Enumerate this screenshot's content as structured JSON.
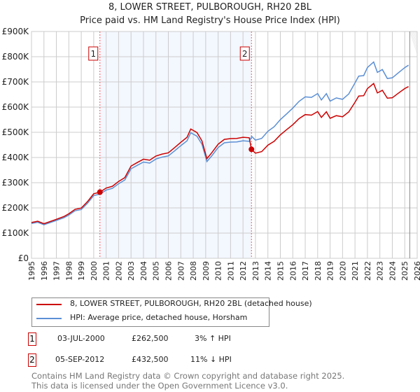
{
  "chart_data": {
    "type": "line",
    "title": "8, LOWER STREET, PULBOROUGH, RH20 2BL",
    "subtitle": "Price paid vs. HM Land Registry's House Price Index (HPI)",
    "xlim": [
      1995,
      2026
    ],
    "ylim": [
      0,
      900000
    ],
    "x_ticks": [
      "1995",
      "1996",
      "1997",
      "1998",
      "1999",
      "2000",
      "2001",
      "2002",
      "2003",
      "2004",
      "2005",
      "2006",
      "2007",
      "2008",
      "2009",
      "2010",
      "2011",
      "2012",
      "2013",
      "2014",
      "2015",
      "2016",
      "2017",
      "2018",
      "2019",
      "2020",
      "2021",
      "2022",
      "2023",
      "2024",
      "2025",
      "2026"
    ],
    "y_ticks": [
      "£0",
      "£100K",
      "£200K",
      "£300K",
      "£400K",
      "£500K",
      "£600K",
      "£700K",
      "£800K",
      "£900K"
    ],
    "series": [
      {
        "name": "HPI: Average price, detached house, Horsham",
        "color": "#5b8fd4",
        "x": [
          1995,
          1995.5,
          1996,
          1997,
          1997.6,
          1998,
          1998.5,
          1999,
          1999.5,
          2000,
          2000.5,
          2001,
          2001.5,
          2002,
          2002.5,
          2003,
          2003.5,
          2004,
          2004.5,
          2005,
          2005.5,
          2006,
          2006.5,
          2007,
          2007.5,
          2007.8,
          2008.3,
          2008.7,
          2009.1,
          2009.5,
          2010,
          2010.5,
          2011,
          2011.5,
          2012,
          2012.5,
          2012.7,
          2013,
          2013.5,
          2014,
          2014.5,
          2015,
          2015.5,
          2016,
          2016.5,
          2017,
          2017.5,
          2018,
          2018.3,
          2018.7,
          2019,
          2019.5,
          2020,
          2020.5,
          2021,
          2021.3,
          2021.7,
          2022,
          2022.5,
          2022.8,
          2023.2,
          2023.6,
          2024,
          2024.5,
          2025,
          2025.3
        ],
        "y": [
          138000,
          140000,
          137000,
          148000,
          160000,
          175000,
          185000,
          195000,
          220000,
          245000,
          258000,
          270000,
          275000,
          300000,
          308000,
          355000,
          372000,
          378000,
          380000,
          395000,
          398000,
          410000,
          425000,
          445000,
          470000,
          495000,
          485000,
          455000,
          380000,
          410000,
          440000,
          455000,
          465000,
          460000,
          465000,
          468000,
          480000,
          470000,
          478000,
          500000,
          525000,
          550000,
          570000,
          600000,
          620000,
          640000,
          642000,
          650000,
          630000,
          655000,
          620000,
          640000,
          630000,
          650000,
          700000,
          720000,
          725000,
          760000,
          775000,
          740000,
          750000,
          710000,
          720000,
          735000,
          755000,
          770000
        ]
      },
      {
        "name": "8, LOWER STREET, PULBOROUGH, RH20 2BL (detached house)",
        "color": "#cc0000"
      }
    ],
    "sales": [
      {
        "label": "1",
        "date": "03-JUL-2000",
        "x": 2000.5,
        "price": "£262,500",
        "value": 262500,
        "hpi": "3% ↑ HPI"
      },
      {
        "label": "2",
        "date": "05-SEP-2012",
        "x": 2012.68,
        "price": "£432,500",
        "value": 432500,
        "hpi": "11% ↓ HPI"
      }
    ],
    "footer": [
      "Contains HM Land Registry data © Crown copyright and database right 2025.",
      "This data is licensed under the Open Government Licence v3.0."
    ]
  }
}
